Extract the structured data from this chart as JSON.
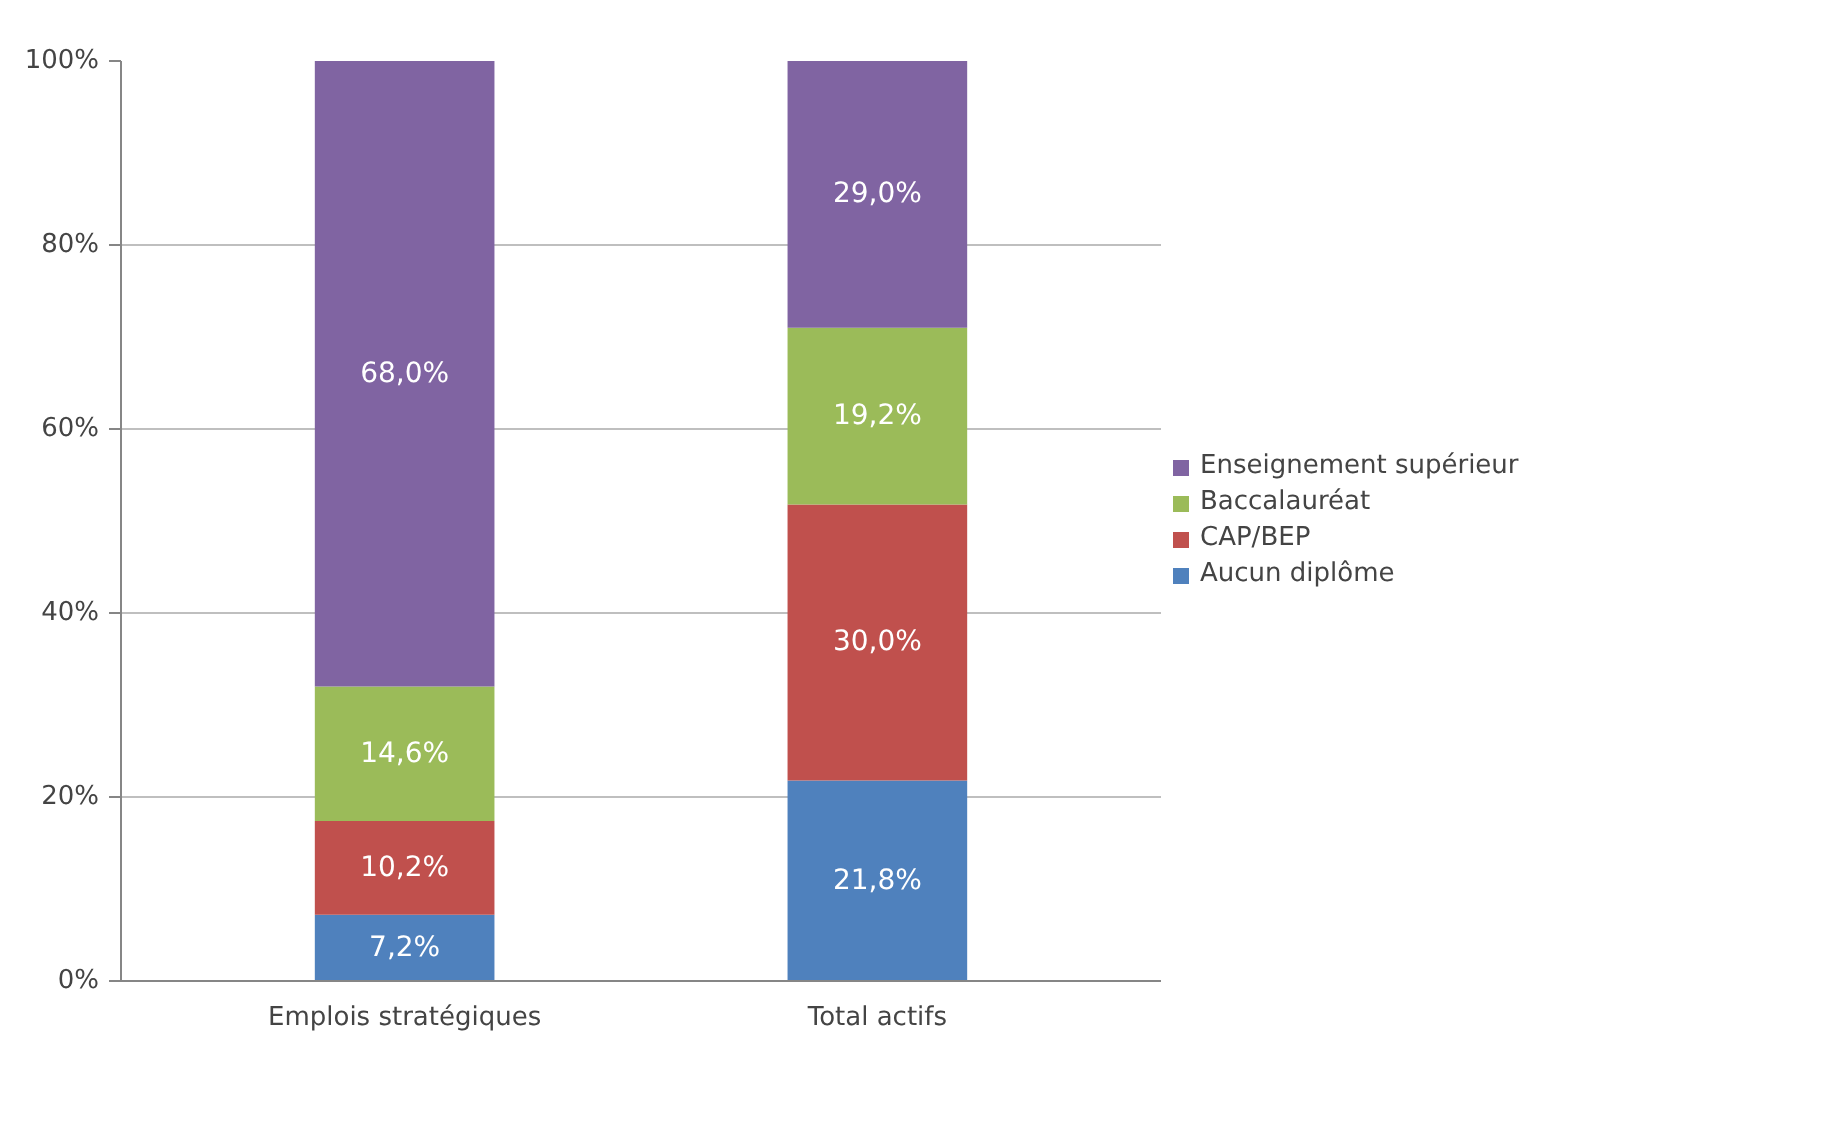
{
  "chart_data": {
    "type": "bar",
    "stacked": true,
    "categories": [
      "Emplois stratégiques",
      "Total actifs"
    ],
    "series": [
      {
        "name": "Aucun diplôme",
        "color": "#4f81bd",
        "values": [
          7.2,
          21.8
        ],
        "value_labels": [
          "7,2%",
          "21,8%"
        ]
      },
      {
        "name": "CAP/BEP",
        "color": "#c0504d",
        "values": [
          10.2,
          30.0
        ],
        "value_labels": [
          "10,2%",
          "30,0%"
        ]
      },
      {
        "name": "Baccalauréat",
        "color": "#9bbb59",
        "values": [
          14.6,
          19.2
        ],
        "value_labels": [
          "14,6%",
          "19,2%"
        ]
      },
      {
        "name": "Enseignement supérieur",
        "color": "#8064a2",
        "values": [
          68.0,
          29.0
        ],
        "value_labels": [
          "68,0%",
          "29,0%"
        ]
      }
    ],
    "ylim": [
      0,
      100
    ],
    "yticks": [
      {
        "value": 0,
        "label": "0%"
      },
      {
        "value": 20,
        "label": "20%"
      },
      {
        "value": 40,
        "label": "40%"
      },
      {
        "value": 60,
        "label": "60%"
      },
      {
        "value": 80,
        "label": "80%"
      },
      {
        "value": 100,
        "label": "100%"
      }
    ],
    "grid": "y",
    "legend": "right"
  }
}
